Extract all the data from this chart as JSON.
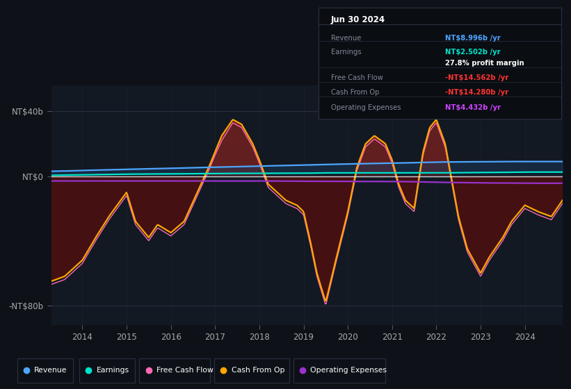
{
  "background_color": "#0e1218",
  "plot_bg_color": "#131922",
  "title": "Jun 30 2024",
  "table_rows": [
    {
      "label": "Revenue",
      "value": "NT$8.996b /yr",
      "value_color": "#4da6ff"
    },
    {
      "label": "Earnings",
      "value": "NT$2.502b /yr",
      "value_color": "#00e5cc"
    },
    {
      "label": "",
      "value": "27.8% profit margin",
      "value_color": "#ffffff"
    },
    {
      "label": "Free Cash Flow",
      "value": "-NT$14.562b /yr",
      "value_color": "#ff4444"
    },
    {
      "label": "Cash From Op",
      "value": "-NT$14.280b /yr",
      "value_color": "#ff4444"
    },
    {
      "label": "Operating Expenses",
      "value": "NT$4.432b /yr",
      "value_color": "#cc44ff"
    }
  ],
  "ytick_positions": [
    40,
    0,
    -80
  ],
  "ytick_labels": [
    "NT$40b",
    "NT$0",
    "-NT$80b"
  ],
  "xticks": [
    2014,
    2015,
    2016,
    2017,
    2018,
    2019,
    2020,
    2021,
    2022,
    2023,
    2024
  ],
  "xlim": [
    2013.3,
    2024.85
  ],
  "ylim": [
    -92,
    56
  ],
  "legend": [
    {
      "label": "Revenue",
      "color": "#4da6ff"
    },
    {
      "label": "Earnings",
      "color": "#00e5cc"
    },
    {
      "label": "Free Cash Flow",
      "color": "#ff69b4"
    },
    {
      "label": "Cash From Op",
      "color": "#ffa500"
    },
    {
      "label": "Operating Expenses",
      "color": "#9932cc"
    }
  ],
  "color_revenue": "#4da6ff",
  "color_earnings": "#00e5cc",
  "color_fcf": "#ff69b4",
  "color_cashop": "#ffa500",
  "color_opex": "#9932cc",
  "fill_pos_color": "#6b2020",
  "fill_neg_color": "#4a1010",
  "rev_x": [
    2013.3,
    2013.7,
    2014.0,
    2014.5,
    2015.0,
    2015.5,
    2016.0,
    2016.5,
    2017.0,
    2017.5,
    2018.0,
    2018.5,
    2019.0,
    2019.5,
    2020.0,
    2020.5,
    2021.0,
    2021.3,
    2021.7,
    2022.0,
    2022.5,
    2023.0,
    2023.5,
    2024.0,
    2024.5,
    2024.85
  ],
  "rev_y": [
    3.0,
    3.2,
    3.5,
    3.8,
    4.2,
    4.5,
    4.8,
    5.2,
    5.5,
    5.8,
    6.2,
    6.5,
    6.8,
    7.2,
    7.5,
    7.8,
    8.0,
    8.2,
    8.5,
    8.7,
    8.8,
    8.9,
    9.0,
    9.0,
    9.0,
    9.0
  ],
  "ear_x": [
    2013.3,
    2014.0,
    2014.5,
    2015.0,
    2015.5,
    2016.0,
    2016.5,
    2017.0,
    2017.5,
    2018.0,
    2018.5,
    2019.0,
    2019.5,
    2020.0,
    2020.5,
    2021.0,
    2021.5,
    2022.0,
    2022.5,
    2023.0,
    2023.5,
    2024.0,
    2024.85
  ],
  "ear_y": [
    0.5,
    0.8,
    1.0,
    1.2,
    1.3,
    1.4,
    1.5,
    1.6,
    1.7,
    1.7,
    1.8,
    1.8,
    2.0,
    2.0,
    2.0,
    2.0,
    2.0,
    2.0,
    2.1,
    2.2,
    2.3,
    2.5,
    2.5
  ],
  "cop_x": [
    2013.3,
    2013.6,
    2014.0,
    2014.3,
    2014.6,
    2015.0,
    2015.2,
    2015.5,
    2015.7,
    2016.0,
    2016.3,
    2016.6,
    2016.85,
    2017.0,
    2017.15,
    2017.4,
    2017.6,
    2017.85,
    2018.0,
    2018.2,
    2018.4,
    2018.6,
    2018.85,
    2019.0,
    2019.15,
    2019.3,
    2019.5,
    2019.7,
    2020.0,
    2020.2,
    2020.4,
    2020.6,
    2020.85,
    2021.0,
    2021.15,
    2021.3,
    2021.5,
    2021.7,
    2021.85,
    2022.0,
    2022.2,
    2022.5,
    2022.7,
    2023.0,
    2023.2,
    2023.5,
    2023.7,
    2024.0,
    2024.3,
    2024.6,
    2024.85
  ],
  "cop_y": [
    -65,
    -62,
    -52,
    -38,
    -25,
    -10,
    -28,
    -38,
    -30,
    -35,
    -28,
    -10,
    5,
    15,
    25,
    35,
    32,
    20,
    10,
    -5,
    -10,
    -15,
    -18,
    -22,
    -40,
    -60,
    -78,
    -55,
    -22,
    5,
    20,
    25,
    20,
    10,
    -5,
    -15,
    -20,
    15,
    30,
    35,
    20,
    -25,
    -45,
    -60,
    -50,
    -38,
    -28,
    -18,
    -22,
    -25,
    -15
  ],
  "fcf_x": [
    2013.3,
    2013.6,
    2014.0,
    2014.3,
    2014.6,
    2015.0,
    2015.2,
    2015.5,
    2015.7,
    2016.0,
    2016.3,
    2016.6,
    2016.85,
    2017.0,
    2017.15,
    2017.4,
    2017.6,
    2017.85,
    2018.0,
    2018.2,
    2018.4,
    2018.6,
    2018.85,
    2019.0,
    2019.15,
    2019.3,
    2019.5,
    2019.7,
    2020.0,
    2020.2,
    2020.4,
    2020.6,
    2020.85,
    2021.0,
    2021.15,
    2021.3,
    2021.5,
    2021.7,
    2021.85,
    2022.0,
    2022.2,
    2022.5,
    2022.7,
    2023.0,
    2023.2,
    2023.5,
    2023.7,
    2024.0,
    2024.3,
    2024.6,
    2024.85
  ],
  "fcf_y": [
    -67,
    -64,
    -54,
    -40,
    -27,
    -12,
    -30,
    -40,
    -32,
    -37,
    -30,
    -12,
    3,
    13,
    22,
    33,
    30,
    18,
    8,
    -7,
    -12,
    -17,
    -20,
    -24,
    -42,
    -62,
    -80,
    -57,
    -24,
    3,
    18,
    23,
    18,
    8,
    -7,
    -17,
    -22,
    13,
    28,
    33,
    18,
    -27,
    -47,
    -62,
    -52,
    -40,
    -30,
    -20,
    -24,
    -27,
    -17
  ],
  "opex_x": [
    2013.3,
    2015.0,
    2018.0,
    2019.0,
    2020.5,
    2021.0,
    2021.5,
    2022.0,
    2022.5,
    2023.0,
    2024.0,
    2024.85
  ],
  "opex_y": [
    -3.0,
    -3.0,
    -3.0,
    -3.2,
    -3.3,
    -3.3,
    -3.5,
    -3.8,
    -4.0,
    -4.2,
    -4.4,
    -4.4
  ]
}
